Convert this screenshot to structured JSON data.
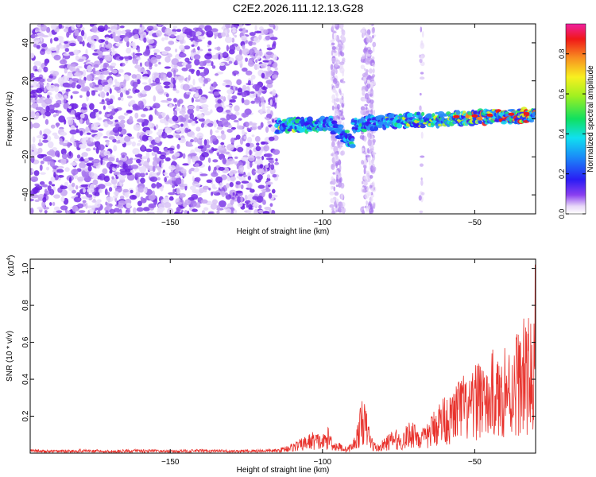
{
  "figure_title": "C2E2.2026.111.12.13.G28",
  "chart_data": [
    {
      "type": "heatmap",
      "xlabel": "Height of straight line (km)",
      "ylabel": "Frequency (Hz)",
      "xlim": [
        -196,
        -30
      ],
      "ylim": [
        -50,
        50
      ],
      "xticks": [
        -150,
        -100,
        -50
      ],
      "yticks": [
        -40,
        -20,
        0,
        20,
        40
      ],
      "grid": false,
      "colorbar": {
        "label": "Normalized spectral amplitude",
        "range": [
          0,
          0.95
        ],
        "ticks": [
          0.0,
          0.2,
          0.4,
          0.6,
          0.8
        ],
        "colormap": "rainbow (white → purple → blue → cyan → green → yellow → orange → red → magenta)"
      },
      "features": [
        {
          "desc": "diffuse noise blobs over full frequency range",
          "x_range": [
            -196,
            -117
          ],
          "amplitude": 0.05
        },
        {
          "desc": "signal ridge near 0 Hz",
          "x_range": [
            -115,
            -30
          ],
          "frequency_hz": [
            -5,
            2
          ],
          "amplitude_peak": 0.9
        },
        {
          "desc": "vertical noise bands",
          "x_center": [
            -95,
            -85
          ],
          "amplitude": 0.05
        }
      ]
    },
    {
      "type": "line",
      "xlabel": "Height of straight line (km)",
      "ylabel": "SNR (10 * v/v)",
      "y_multiplier": "(x10",
      "y_multiplier_exp": "4",
      "xlim": [
        -196,
        -30
      ],
      "ylim": [
        0,
        1.05
      ],
      "xticks": [
        -150,
        -100,
        -50
      ],
      "yticks": [
        0.2,
        0.4,
        0.6,
        0.8,
        1.0
      ],
      "grid": false,
      "color": "#e8322c",
      "x": [
        -196,
        -190,
        -180,
        -170,
        -160,
        -150,
        -140,
        -130,
        -120,
        -115,
        -110,
        -106,
        -103,
        -100,
        -98,
        -96,
        -94,
        -92,
        -90,
        -88,
        -87,
        -86,
        -85,
        -84,
        -83,
        -82,
        -81,
        -80,
        -78,
        -76,
        -74,
        -72,
        -70,
        -68,
        -66,
        -64,
        -62,
        -60,
        -58,
        -56,
        -54,
        -52,
        -50,
        -48,
        -46,
        -44,
        -42,
        -40,
        -38,
        -36,
        -35,
        -34,
        -33,
        -32,
        -31,
        -30
      ],
      "y": [
        0.02,
        0.015,
        0.02,
        0.015,
        0.02,
        0.015,
        0.02,
        0.015,
        0.02,
        0.02,
        0.05,
        0.08,
        0.11,
        0.09,
        0.13,
        0.06,
        0.05,
        0.03,
        0.06,
        0.18,
        0.29,
        0.24,
        0.17,
        0.09,
        0.06,
        0.04,
        0.05,
        0.07,
        0.1,
        0.12,
        0.09,
        0.15,
        0.18,
        0.12,
        0.13,
        0.2,
        0.26,
        0.3,
        0.28,
        0.36,
        0.4,
        0.35,
        0.42,
        0.55,
        0.38,
        0.52,
        0.45,
        0.58,
        0.5,
        0.65,
        0.58,
        0.68,
        0.6,
        0.72,
        0.55,
        1.05
      ]
    }
  ]
}
